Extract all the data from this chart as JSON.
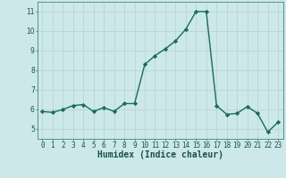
{
  "x": [
    0,
    1,
    2,
    3,
    4,
    5,
    6,
    7,
    8,
    9,
    10,
    11,
    12,
    13,
    14,
    15,
    16,
    17,
    18,
    19,
    20,
    21,
    22,
    23
  ],
  "y": [
    5.9,
    5.85,
    6.0,
    6.2,
    6.25,
    5.9,
    6.1,
    5.9,
    6.3,
    6.3,
    8.3,
    8.75,
    9.1,
    9.5,
    10.1,
    11.0,
    11.0,
    6.2,
    5.75,
    5.8,
    6.15,
    5.8,
    4.85,
    5.35
  ],
  "line_color": "#1a6b5a",
  "marker": "D",
  "markersize": 2.2,
  "linewidth": 1.0,
  "background_color": "#cce8e8",
  "grid_color": "#b8d4d4",
  "xlabel": "Humidex (Indice chaleur)",
  "xlabel_fontsize": 7,
  "xlabel_fontweight": "bold",
  "xlim": [
    -0.5,
    23.5
  ],
  "ylim": [
    4.5,
    11.5
  ],
  "yticks": [
    5,
    6,
    7,
    8,
    9,
    10,
    11
  ],
  "xticks": [
    0,
    1,
    2,
    3,
    4,
    5,
    6,
    7,
    8,
    9,
    10,
    11,
    12,
    13,
    14,
    15,
    16,
    17,
    18,
    19,
    20,
    21,
    22,
    23
  ],
  "tick_fontsize": 5.5,
  "fig_bg_color": "#cce8e8",
  "spine_color": "#5a9090"
}
